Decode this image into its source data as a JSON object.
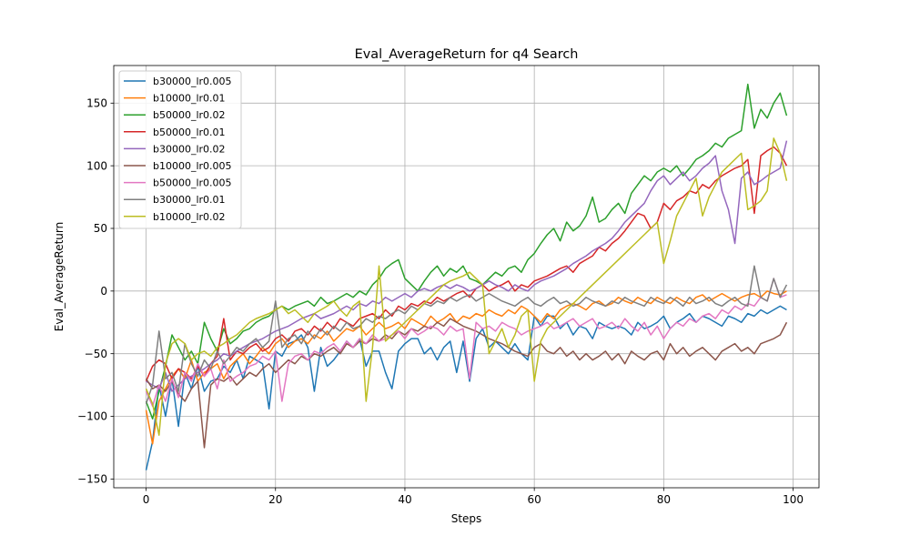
{
  "chart_data": {
    "type": "line",
    "title": "Eval_AverageReturn for q4 Search",
    "xlabel": "Steps",
    "ylabel": "Eval_AverageReturn",
    "xlim": [
      -5,
      104
    ],
    "ylim": [
      -157,
      180
    ],
    "xticks": [
      0,
      20,
      40,
      60,
      80,
      100
    ],
    "yticks": [
      -150,
      -100,
      -50,
      0,
      50,
      100,
      150
    ],
    "grid": true,
    "legend_position": "upper-left",
    "series": [
      {
        "name": "b30000_lr0.005",
        "color": "#1f77b4",
        "values": [
          -143,
          -120,
          -75,
          -100,
          -70,
          -108,
          -65,
          -78,
          -60,
          -80,
          -72,
          -70,
          -60,
          -65,
          -55,
          -70,
          -52,
          -55,
          -58,
          -94,
          -48,
          -52,
          -42,
          -40,
          -35,
          -45,
          -80,
          -45,
          -60,
          -55,
          -48,
          -40,
          -45,
          -38,
          -60,
          -48,
          -48,
          -65,
          -78,
          -48,
          -42,
          -38,
          -38,
          -50,
          -45,
          -55,
          -45,
          -40,
          -65,
          -40,
          -72,
          -38,
          -30,
          -45,
          -40,
          -45,
          -50,
          -42,
          -50,
          -55,
          -20,
          -28,
          -20,
          -20,
          -30,
          -25,
          -35,
          -28,
          -30,
          -38,
          -25,
          -28,
          -30,
          -28,
          -30,
          -35,
          -25,
          -30,
          -28,
          -25,
          -20,
          -30,
          -25,
          -22,
          -18,
          -25,
          -20,
          -22,
          -25,
          -28,
          -20,
          -22,
          -25,
          -18,
          -20,
          -15,
          -18,
          -15,
          -12,
          -15
        ]
      },
      {
        "name": "b10000_lr0.01",
        "color": "#ff7f0e",
        "values": [
          -95,
          -122,
          -88,
          -78,
          -68,
          -62,
          -70,
          -55,
          -72,
          -65,
          -62,
          -58,
          -70,
          -60,
          -55,
          -50,
          -58,
          -52,
          -45,
          -50,
          -42,
          -38,
          -45,
          -40,
          -38,
          -42,
          -35,
          -38,
          -32,
          -40,
          -35,
          -30,
          -32,
          -28,
          -35,
          -30,
          -25,
          -30,
          -28,
          -25,
          -30,
          -22,
          -25,
          -28,
          -20,
          -25,
          -22,
          -18,
          -25,
          -20,
          -22,
          -18,
          -20,
          -15,
          -18,
          -20,
          -15,
          -18,
          -12,
          -15,
          -20,
          -25,
          -18,
          -22,
          -15,
          -12,
          -10,
          -12,
          -15,
          -10,
          -8,
          -12,
          -10,
          -5,
          -8,
          -10,
          -5,
          -8,
          -10,
          -5,
          -8,
          -10,
          -5,
          -8,
          -10,
          -5,
          -3,
          -8,
          -5,
          -2,
          -5,
          -8,
          -5,
          -3,
          -2,
          -5,
          0,
          -2,
          -3,
          0
        ]
      },
      {
        "name": "b50000_lr0.02",
        "color": "#2ca02c",
        "values": [
          -88,
          -102,
          -80,
          -60,
          -35,
          -45,
          -55,
          -48,
          -58,
          -25,
          -38,
          -48,
          -30,
          -42,
          -38,
          -32,
          -30,
          -25,
          -22,
          -20,
          -15,
          -12,
          -15,
          -12,
          -10,
          -8,
          -12,
          -5,
          -10,
          -8,
          -5,
          -2,
          -5,
          0,
          -3,
          5,
          10,
          18,
          22,
          25,
          10,
          5,
          0,
          8,
          15,
          20,
          12,
          18,
          15,
          20,
          10,
          8,
          5,
          10,
          15,
          12,
          18,
          20,
          15,
          25,
          30,
          38,
          45,
          50,
          40,
          55,
          48,
          52,
          60,
          75,
          55,
          58,
          65,
          70,
          62,
          78,
          85,
          92,
          88,
          95,
          98,
          95,
          100,
          92,
          98,
          105,
          108,
          112,
          118,
          115,
          122,
          125,
          128,
          165,
          130,
          145,
          138,
          150,
          158,
          140
        ]
      },
      {
        "name": "b50000_lr0.01",
        "color": "#d62728",
        "values": [
          -72,
          -60,
          -55,
          -58,
          -70,
          -62,
          -65,
          -70,
          -60,
          -68,
          -58,
          -52,
          -22,
          -55,
          -48,
          -50,
          -45,
          -42,
          -48,
          -45,
          -38,
          -35,
          -40,
          -32,
          -30,
          -35,
          -28,
          -32,
          -25,
          -30,
          -22,
          -25,
          -28,
          -22,
          -20,
          -18,
          -22,
          -15,
          -20,
          -12,
          -15,
          -10,
          -12,
          -8,
          -10,
          -5,
          -8,
          -5,
          -2,
          0,
          -5,
          2,
          5,
          0,
          3,
          5,
          8,
          0,
          5,
          3,
          8,
          10,
          12,
          15,
          18,
          20,
          15,
          22,
          25,
          28,
          35,
          32,
          38,
          42,
          48,
          55,
          62,
          60,
          50,
          55,
          70,
          65,
          72,
          75,
          80,
          78,
          85,
          82,
          88,
          92,
          95,
          98,
          100,
          105,
          62,
          108,
          112,
          115,
          110,
          100
        ]
      },
      {
        "name": "b30000_lr0.02",
        "color": "#9467bd",
        "values": [
          -72,
          -75,
          -78,
          -65,
          -80,
          -75,
          -70,
          -68,
          -65,
          -62,
          -58,
          -55,
          -50,
          -52,
          -48,
          -45,
          -42,
          -40,
          -38,
          -35,
          -32,
          -30,
          -28,
          -25,
          -22,
          -20,
          -18,
          -22,
          -20,
          -18,
          -15,
          -12,
          -15,
          -10,
          -12,
          -8,
          -10,
          -5,
          -8,
          -5,
          -2,
          -5,
          0,
          2,
          0,
          3,
          5,
          2,
          5,
          3,
          0,
          2,
          5,
          8,
          5,
          3,
          0,
          5,
          2,
          0,
          5,
          8,
          10,
          12,
          15,
          18,
          22,
          25,
          28,
          32,
          35,
          38,
          42,
          48,
          55,
          60,
          65,
          70,
          80,
          88,
          92,
          85,
          90,
          95,
          88,
          92,
          98,
          102,
          108,
          80,
          65,
          38,
          90,
          95,
          85,
          88,
          92,
          95,
          98,
          120
        ]
      },
      {
        "name": "b10000_lr0.005",
        "color": "#8c564b",
        "values": [
          -70,
          -78,
          -75,
          -80,
          -72,
          -82,
          -88,
          -78,
          -72,
          -125,
          -75,
          -70,
          -72,
          -68,
          -75,
          -70,
          -65,
          -68,
          -62,
          -58,
          -65,
          -60,
          -55,
          -58,
          -52,
          -55,
          -50,
          -52,
          -48,
          -45,
          -50,
          -42,
          -45,
          -40,
          -42,
          -38,
          -40,
          -35,
          -38,
          -32,
          -35,
          -30,
          -32,
          -28,
          -30,
          -25,
          -28,
          -22,
          -25,
          -28,
          -30,
          -32,
          -35,
          -38,
          -40,
          -42,
          -45,
          -48,
          -50,
          -52,
          -45,
          -42,
          -48,
          -50,
          -45,
          -52,
          -48,
          -55,
          -50,
          -55,
          -52,
          -48,
          -55,
          -50,
          -58,
          -48,
          -52,
          -55,
          -50,
          -48,
          -55,
          -42,
          -50,
          -45,
          -52,
          -48,
          -45,
          -50,
          -55,
          -48,
          -45,
          -42,
          -48,
          -45,
          -50,
          -42,
          -40,
          -38,
          -35,
          -25
        ]
      },
      {
        "name": "b50000_lr0.005",
        "color": "#e377c2",
        "values": [
          -80,
          -92,
          -75,
          -88,
          -70,
          -85,
          -65,
          -72,
          -58,
          -68,
          -62,
          -78,
          -55,
          -72,
          -68,
          -65,
          -60,
          -58,
          -52,
          -55,
          -48,
          -88,
          -58,
          -52,
          -50,
          -55,
          -48,
          -50,
          -45,
          -42,
          -48,
          -40,
          -45,
          -38,
          -42,
          -35,
          -40,
          -38,
          -35,
          -32,
          -38,
          -30,
          -35,
          -32,
          -28,
          -30,
          -35,
          -28,
          -32,
          -30,
          -70,
          -25,
          -30,
          -28,
          -32,
          -25,
          -28,
          -30,
          -35,
          -32,
          -30,
          -28,
          -25,
          -30,
          -28,
          -25,
          -22,
          -28,
          -25,
          -22,
          -30,
          -28,
          -25,
          -30,
          -22,
          -28,
          -32,
          -25,
          -35,
          -28,
          -38,
          -30,
          -25,
          -28,
          -22,
          -25,
          -20,
          -18,
          -22,
          -15,
          -18,
          -12,
          -15,
          -10,
          -12,
          -5,
          -8,
          10,
          -5,
          -3
        ]
      },
      {
        "name": "b30000_lr0.01",
        "color": "#7f7f7f",
        "values": [
          -90,
          -75,
          -32,
          -70,
          -65,
          -80,
          -42,
          -58,
          -68,
          -55,
          -62,
          -48,
          -58,
          -52,
          -45,
          -48,
          -42,
          -38,
          -45,
          -40,
          -8,
          -45,
          -38,
          -35,
          -42,
          -32,
          -38,
          -30,
          -35,
          -28,
          -32,
          -25,
          -30,
          -28,
          -22,
          -25,
          -20,
          -22,
          -18,
          -15,
          -18,
          -12,
          -15,
          -10,
          -12,
          -8,
          -10,
          -5,
          -8,
          -5,
          -3,
          -8,
          -5,
          -2,
          -5,
          -8,
          -10,
          -12,
          -8,
          -5,
          -10,
          -12,
          -8,
          -5,
          -10,
          -8,
          -12,
          -10,
          -5,
          -8,
          -10,
          -12,
          -8,
          -10,
          -5,
          -8,
          -10,
          -12,
          -5,
          -8,
          -10,
          -5,
          -8,
          -12,
          -5,
          -10,
          -8,
          -5,
          -10,
          -12,
          -8,
          -5,
          -10,
          -12,
          20,
          -5,
          -8,
          10,
          -5,
          5
        ]
      },
      {
        "name": "b10000_lr0.02",
        "color": "#bcbd22",
        "values": [
          -78,
          -90,
          -115,
          -58,
          -42,
          -38,
          -42,
          -55,
          -50,
          -48,
          -52,
          -45,
          -42,
          -38,
          -35,
          -30,
          -25,
          -22,
          -20,
          -18,
          -15,
          -12,
          -18,
          -15,
          -20,
          -25,
          -18,
          -15,
          -12,
          -8,
          -15,
          -20,
          -12,
          -8,
          -88,
          -45,
          20,
          -40,
          -35,
          -30,
          -25,
          -20,
          -15,
          -10,
          -5,
          0,
          5,
          8,
          10,
          12,
          15,
          10,
          5,
          -50,
          -40,
          -30,
          -45,
          -35,
          -20,
          -15,
          -72,
          -40,
          -30,
          -25,
          -20,
          -15,
          -10,
          -5,
          0,
          5,
          10,
          15,
          20,
          25,
          30,
          35,
          40,
          45,
          50,
          55,
          22,
          40,
          60,
          70,
          80,
          90,
          60,
          75,
          85,
          95,
          100,
          105,
          110,
          65,
          68,
          72,
          80,
          122,
          110,
          88
        ]
      }
    ]
  }
}
